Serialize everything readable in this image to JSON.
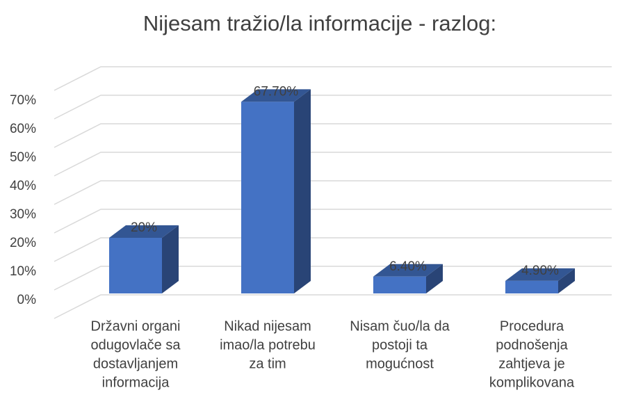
{
  "chart_data": {
    "type": "bar3d",
    "title": "Nijesam tražio/la informacije - razlog:",
    "categories": [
      [
        "Državni organi",
        "odugovlače sa",
        "dostavljanjem",
        "informacija"
      ],
      [
        "Nikad nijesam",
        "imao/la potrebu",
        "za tim"
      ],
      [
        "Nisam čuo/la da",
        "postoji ta",
        "mogućnost"
      ],
      [
        "Procedura",
        "podnošenja",
        "zahtjeva je",
        "komplikovana"
      ]
    ],
    "values": [
      20,
      67.7,
      6.4,
      4.9
    ],
    "value_labels": [
      "20%",
      "67.70%",
      "6.40%",
      "4.90%"
    ],
    "color": "#4472c4",
    "ylim": [
      0,
      80
    ],
    "yticks": [
      {
        "value": 0,
        "label": "0%"
      },
      {
        "value": 10,
        "label": "10%"
      },
      {
        "value": 20,
        "label": "20%"
      },
      {
        "value": 30,
        "label": "30%"
      },
      {
        "value": 40,
        "label": "40%"
      },
      {
        "value": 50,
        "label": "50%"
      },
      {
        "value": 60,
        "label": "60%"
      },
      {
        "value": 70,
        "label": "70%"
      }
    ],
    "grid": true
  }
}
